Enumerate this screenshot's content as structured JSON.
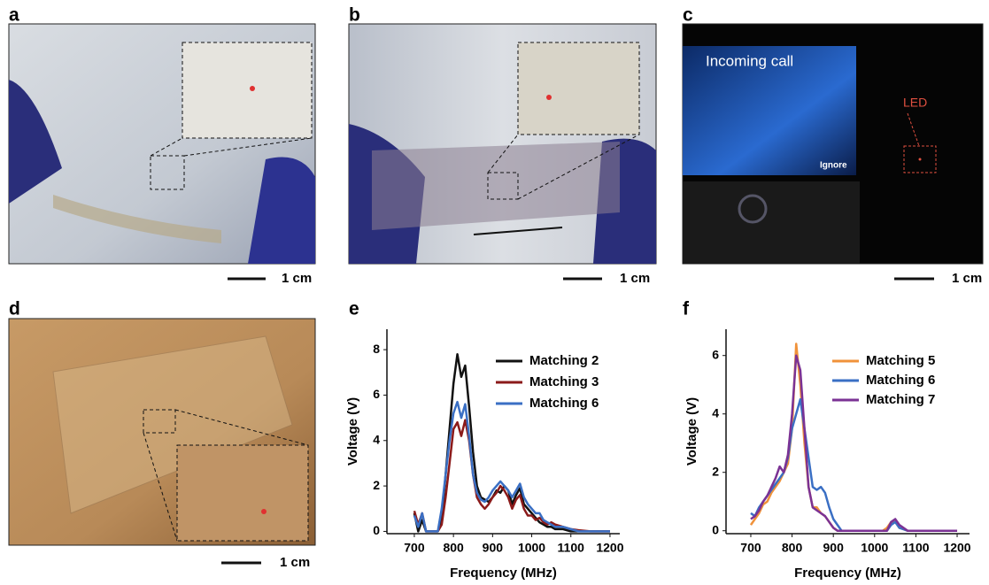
{
  "figure": {
    "photos": [
      {
        "label": "a",
        "scale_bar": "1 cm"
      },
      {
        "label": "b",
        "scale_bar": "1 cm"
      },
      {
        "label": "c",
        "scale_bar": "1 cm",
        "texts": [
          "Incoming call",
          "Ignore",
          "LED"
        ]
      },
      {
        "label": "d",
        "scale_bar": "1 cm"
      }
    ]
  },
  "chart_data": [
    {
      "type": "line",
      "panel": "e",
      "xlabel": "Frequency (MHz)",
      "ylabel": "Voltage (V)",
      "xlim": [
        630,
        1225
      ],
      "ylim": [
        -0.1,
        8.9
      ],
      "xticks": [
        700,
        800,
        900,
        1000,
        1100,
        1200
      ],
      "yticks": [
        0,
        2,
        4,
        6,
        8
      ],
      "legend": "upper right",
      "x": [
        700,
        710,
        720,
        730,
        740,
        750,
        760,
        770,
        780,
        790,
        800,
        810,
        820,
        830,
        840,
        850,
        860,
        870,
        880,
        890,
        900,
        910,
        920,
        930,
        940,
        950,
        960,
        970,
        980,
        990,
        1000,
        1010,
        1020,
        1030,
        1040,
        1050,
        1060,
        1080,
        1100,
        1120,
        1150,
        1180,
        1200
      ],
      "series": [
        {
          "name": "Matching 2",
          "color": "#111111",
          "values": [
            0.8,
            0,
            0.5,
            0,
            0,
            0,
            0,
            0.5,
            2.5,
            4.5,
            6.5,
            7.8,
            6.8,
            7.3,
            5.5,
            3.5,
            2,
            1.5,
            1.4,
            1.3,
            1.5,
            1.8,
            1.7,
            2.0,
            1.8,
            1.2,
            1.6,
            1.9,
            1.2,
            1.0,
            0.8,
            0.6,
            0.4,
            0.3,
            0.2,
            0.2,
            0.1,
            0.1,
            0,
            0,
            0,
            0,
            0
          ]
        },
        {
          "name": "Matching 3",
          "color": "#8b1a1a",
          "values": [
            0.9,
            0.3,
            0.8,
            0,
            0,
            0,
            0,
            0.3,
            1.5,
            3,
            4.5,
            4.8,
            4.2,
            4.9,
            4.0,
            2.5,
            1.5,
            1.2,
            1.0,
            1.2,
            1.5,
            1.7,
            2.0,
            1.8,
            1.5,
            1.0,
            1.4,
            1.6,
            1.0,
            0.7,
            0.7,
            0.5,
            0.6,
            0.4,
            0.3,
            0.4,
            0.3,
            0.2,
            0.1,
            0.05,
            0,
            0,
            0
          ]
        },
        {
          "name": "Matching 6",
          "color": "#3a6fc4",
          "values": [
            0.7,
            0.2,
            0.8,
            0,
            0,
            0,
            0,
            1.0,
            2.5,
            4,
            5.2,
            5.7,
            5.0,
            5.6,
            4.2,
            2.5,
            1.7,
            1.4,
            1.3,
            1.5,
            1.8,
            2.0,
            2.2,
            2.0,
            1.8,
            1.5,
            1.8,
            2.1,
            1.5,
            1.2,
            1.0,
            0.8,
            0.8,
            0.5,
            0.4,
            0.3,
            0.2,
            0.2,
            0.1,
            0,
            0,
            0,
            0
          ]
        }
      ]
    },
    {
      "type": "line",
      "panel": "f",
      "xlabel": "Frequency (MHz)",
      "ylabel": "Voltage (V)",
      "xlim": [
        640,
        1230
      ],
      "ylim": [
        -0.1,
        6.9
      ],
      "xticks": [
        700,
        800,
        900,
        1000,
        1100,
        1200
      ],
      "yticks": [
        0,
        2,
        4,
        6
      ],
      "legend": "upper right",
      "x": [
        700,
        710,
        720,
        730,
        740,
        750,
        760,
        770,
        780,
        790,
        800,
        810,
        820,
        830,
        840,
        850,
        860,
        870,
        880,
        890,
        900,
        910,
        920,
        930,
        940,
        950,
        960,
        970,
        980,
        990,
        1000,
        1010,
        1020,
        1030,
        1040,
        1050,
        1060,
        1080,
        1100,
        1120,
        1150,
        1180,
        1200
      ],
      "series": [
        {
          "name": "Matching 5",
          "color": "#f0923a",
          "values": [
            0.2,
            0.4,
            0.6,
            0.9,
            1.0,
            1.3,
            1.5,
            1.7,
            2.0,
            2.3,
            3.5,
            6.4,
            5.0,
            3.0,
            1.5,
            0.8,
            0.8,
            0.6,
            0.5,
            0.3,
            0.1,
            0,
            0,
            0,
            0,
            0,
            0,
            0,
            0,
            0,
            0,
            0,
            0,
            0.1,
            0.3,
            0.3,
            0.1,
            0,
            0,
            0,
            0,
            0,
            0
          ]
        },
        {
          "name": "Matching 6",
          "color": "#3a6fc4",
          "values": [
            0.6,
            0.5,
            0.8,
            1.0,
            1.2,
            1.4,
            1.6,
            1.8,
            2.0,
            2.5,
            3.5,
            4.0,
            4.5,
            3.5,
            2.5,
            1.5,
            1.4,
            1.5,
            1.3,
            0.8,
            0.4,
            0.2,
            0,
            0,
            0,
            0,
            0,
            0,
            0,
            0,
            0,
            0,
            0,
            0,
            0.2,
            0.3,
            0.1,
            0,
            0,
            0,
            0,
            0,
            0
          ]
        },
        {
          "name": "Matching 7",
          "color": "#7b3294",
          "values": [
            0.4,
            0.5,
            0.7,
            1.0,
            1.2,
            1.5,
            1.8,
            2.2,
            2.0,
            2.6,
            4.0,
            6.0,
            5.5,
            3.5,
            1.5,
            0.8,
            0.7,
            0.6,
            0.5,
            0.3,
            0.1,
            0,
            0,
            0,
            0,
            0,
            0,
            0,
            0,
            0,
            0,
            0,
            0,
            0,
            0.3,
            0.4,
            0.2,
            0,
            0,
            0,
            0,
            0,
            0
          ]
        }
      ]
    }
  ]
}
